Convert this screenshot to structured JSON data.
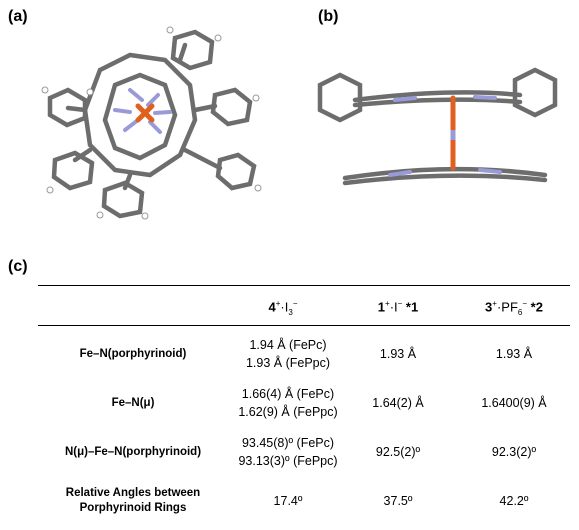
{
  "panels": {
    "a": "(a)",
    "b": "(b)",
    "c": "(c)"
  },
  "table": {
    "headers": [
      {
        "num": "4",
        "sup": "+",
        "mid": "·I",
        "sub": "3",
        "sup2": "−",
        "note": ""
      },
      {
        "num": "1",
        "sup": "+",
        "mid": "·I",
        "sub": "",
        "sup2": "−",
        "note": " *1"
      },
      {
        "num": "3",
        "sup": "+",
        "mid": "·PF",
        "sub": "6",
        "sup2": "−",
        "note": " *2"
      }
    ],
    "rows": [
      {
        "label": [
          "Fe–N(porphyrinoid)"
        ],
        "c1": [
          "1.94 Å (FePc)",
          "1.93 Å (FePpc)"
        ],
        "c2": "1.93 Å",
        "c3": "1.93 Å"
      },
      {
        "label": [
          "Fe–N(μ)"
        ],
        "c1": [
          "1.66(4) Å (FePc)",
          "1.62(9) Å (FePpc)"
        ],
        "c2": "1.64(2) Å",
        "c3": "1.6400(9) Å"
      },
      {
        "label": [
          "N(μ)–Fe–N(porphyrinoid)"
        ],
        "c1": [
          "93.45(8)º (FePc)",
          "93.13(3)º (FePpc)"
        ],
        "c2": "92.5(2)º",
        "c3": "92.3(2)º"
      },
      {
        "label": [
          "Relative Angles between",
          "Porphyrinoid Rings"
        ],
        "c1": [
          "17.4º"
        ],
        "c2": "37.5º",
        "c3": "42.2º"
      }
    ]
  }
}
